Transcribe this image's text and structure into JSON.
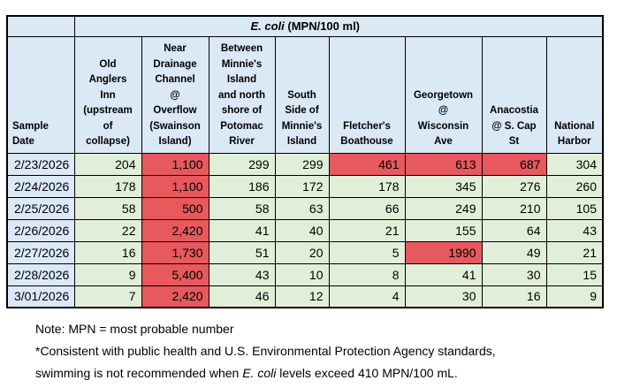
{
  "title": {
    "italic": "E. coli",
    "rest": " (MPN/100 ml)"
  },
  "table": {
    "date_header": "Sample\nDate",
    "columns": [
      {
        "key": "old-anglers-inn",
        "label": "Old\nAnglers\nInn\n(upstream\nof\ncollapse)"
      },
      {
        "key": "near-drainage-channel",
        "label": "Near\nDrainage\nChannel\n@\nOverflow\n(Swainson\nIsland)"
      },
      {
        "key": "between-minnies-island",
        "label": "Between\nMinnie's\nIsland\nand north\nshore of\nPotomac\nRiver"
      },
      {
        "key": "south-side-minnies-island",
        "label": "South\nSide of\nMinnie's\nIsland"
      },
      {
        "key": "fletchers-boathouse",
        "label": "Fletcher's\nBoathouse"
      },
      {
        "key": "georgetown-wisconsin-ave",
        "label": "Georgetown\n@\nWisconsin\nAve"
      },
      {
        "key": "anacostia-s-cap-st",
        "label": "Anacostia\n@ S. Cap\nSt"
      },
      {
        "key": "national-harbor",
        "label": "National\nHarbor"
      }
    ],
    "rows": [
      {
        "date": "2/23/2026",
        "values": [
          "204",
          "1,100",
          "299",
          "299",
          "461",
          "613",
          "687",
          "304"
        ],
        "exceeds": [
          1,
          4,
          5,
          6
        ]
      },
      {
        "date": "2/24/2026",
        "values": [
          "178",
          "1,100",
          "186",
          "172",
          "178",
          "345",
          "276",
          "260"
        ],
        "exceeds": [
          1
        ]
      },
      {
        "date": "2/25/2026",
        "values": [
          "58",
          "500",
          "58",
          "63",
          "66",
          "249",
          "210",
          "105"
        ],
        "exceeds": [
          1
        ]
      },
      {
        "date": "2/26/2026",
        "values": [
          "22",
          "2,420",
          "41",
          "40",
          "21",
          "155",
          "64",
          "43"
        ],
        "exceeds": [
          1
        ]
      },
      {
        "date": "2/27/2026",
        "values": [
          "16",
          "1,730",
          "51",
          "20",
          "5",
          "1990",
          "49",
          "21"
        ],
        "exceeds": [
          1,
          5
        ]
      },
      {
        "date": "2/28/2026",
        "values": [
          "9",
          "5,400",
          "43",
          "10",
          "8",
          "41",
          "30",
          "15"
        ],
        "exceeds": [
          1
        ]
      },
      {
        "date": "3/01/2026",
        "values": [
          "7",
          "2,420",
          "46",
          "12",
          "4",
          "30",
          "16",
          "9"
        ],
        "exceeds": [
          1
        ]
      }
    ]
  },
  "notes": {
    "line1": "Note: MPN = most probable number",
    "line2": "*Consistent with public health and U.S. Environmental Protection Agency standards,",
    "line3_pre": "swimming is not recommended when ",
    "line3_italic": "E. coli",
    "line3_post": " levels exceed 410 MPN/100 mL."
  },
  "colors": {
    "header_fill": "#dbe8f6",
    "normal_fill": "#e1efd9",
    "exceed_fill": "#e7595c",
    "border": "#000000"
  },
  "chart_data": {
    "type": "table",
    "title": "E. coli (MPN/100 ml)",
    "row_header": "Sample Date",
    "columns": [
      "Old Anglers Inn (upstream of collapse)",
      "Near Drainage Channel @ Overflow (Swainson Island)",
      "Between Minnie's Island and north shore of Potomac River",
      "South Side of Minnie's Island",
      "Fletcher's Boathouse",
      "Georgetown @ Wisconsin Ave",
      "Anacostia @ S. Cap St",
      "National Harbor"
    ],
    "dates": [
      "2/23/2026",
      "2/24/2026",
      "2/25/2026",
      "2/26/2026",
      "2/27/2026",
      "2/28/2026",
      "3/01/2026"
    ],
    "values": [
      [
        204,
        1100,
        299,
        299,
        461,
        613,
        687,
        304
      ],
      [
        178,
        1100,
        186,
        172,
        178,
        345,
        276,
        260
      ],
      [
        58,
        500,
        58,
        63,
        66,
        249,
        210,
        105
      ],
      [
        22,
        2420,
        41,
        40,
        21,
        155,
        64,
        43
      ],
      [
        16,
        1730,
        51,
        20,
        5,
        1990,
        49,
        21
      ],
      [
        9,
        5400,
        43,
        10,
        8,
        41,
        30,
        15
      ],
      [
        7,
        2420,
        46,
        12,
        4,
        30,
        16,
        9
      ]
    ],
    "highlight_rule": "red fill when value exceeds 410 MPN/100 mL",
    "highlighted_cells_by_row": [
      [
        1,
        4,
        5,
        6
      ],
      [
        1
      ],
      [
        1
      ],
      [
        1
      ],
      [
        1,
        5
      ],
      [
        1
      ],
      [
        1
      ]
    ]
  }
}
